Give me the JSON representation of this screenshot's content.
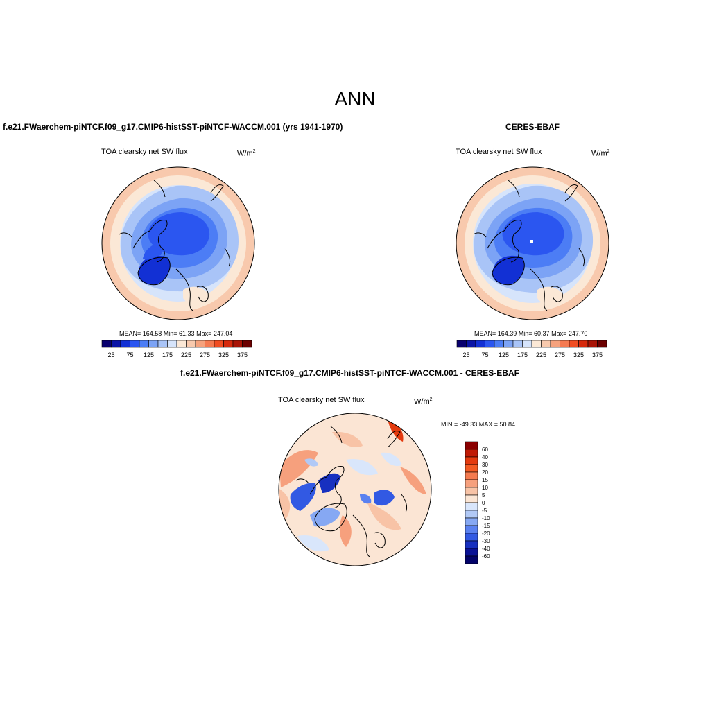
{
  "title": "ANN",
  "panel_model": {
    "title": "f.e21.FWaerchem-piNTCF.f09_g17.CMIP6-histSST-piNTCF-WACCM.001 (yrs 1941-1970)",
    "variable": "TOA clearsky net SW flux",
    "units_base": "W/m",
    "units_exp": "2",
    "stats": "MEAN= 164.58  Min=  61.33  Max= 247.04"
  },
  "panel_obs": {
    "title": "CERES-EBAF",
    "variable": "TOA clearsky net SW flux",
    "units_base": "W/m",
    "units_exp": "2",
    "stats": "MEAN= 164.39  Min=  60.37  Max= 247.70"
  },
  "panel_diff": {
    "title": "f.e21.FWaerchem-piNTCF.f09_g17.CMIP6-histSST-piNTCF-WACCM.001 - CERES-EBAF",
    "variable": "TOA clearsky net SW flux",
    "units_base": "W/m",
    "units_exp": "2",
    "stats": "MIN = -49.33 MAX =  50.84"
  },
  "colorbar_abs": {
    "labels": [
      "25",
      "75",
      "125",
      "175",
      "225",
      "275",
      "325",
      "375"
    ],
    "colors": [
      "#08006e",
      "#0a14a6",
      "#1230d4",
      "#2b56f0",
      "#4c7df5",
      "#7ca3f5",
      "#a9c4f7",
      "#d6e4fb",
      "#fbe8d6",
      "#f8c9ad",
      "#f5a27d",
      "#f47a51",
      "#f04d22",
      "#d62a0d",
      "#a81406",
      "#6b0000"
    ]
  },
  "colorbar_diff": {
    "labels": [
      "60",
      "40",
      "30",
      "20",
      "15",
      "10",
      "5",
      "0",
      "-5",
      "-10",
      "-15",
      "-20",
      "-30",
      "-40",
      "-60"
    ],
    "colors": [
      "#8b0000",
      "#c01a05",
      "#e43a0e",
      "#f35a22",
      "#f47a4e",
      "#f6a07d",
      "#f8c3a6",
      "#fbe5d4",
      "#d9e6fb",
      "#b1c9f6",
      "#86a8f3",
      "#5a81f0",
      "#3259e3",
      "#1730c0",
      "#0a1296",
      "#03036a"
    ]
  }
}
